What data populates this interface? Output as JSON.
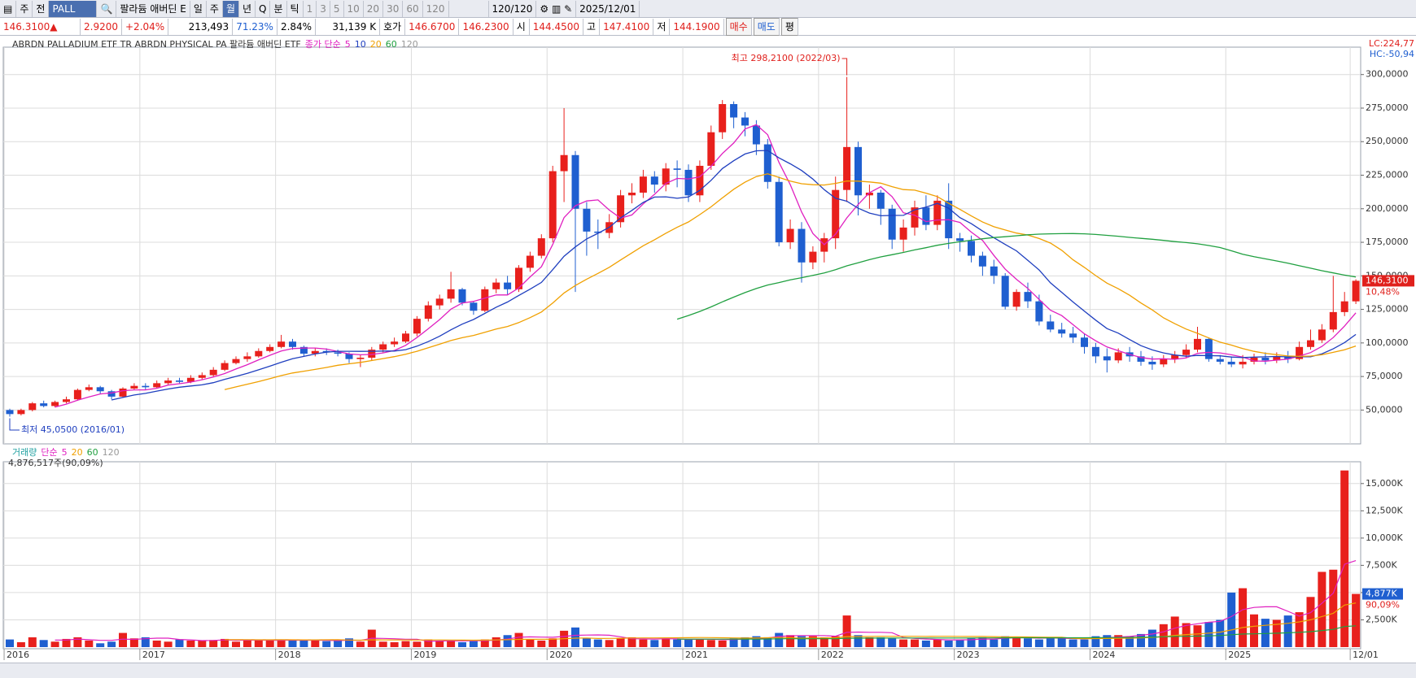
{
  "toolbar": {
    "items": [
      "주",
      "전"
    ],
    "symbol": "PALL",
    "name": "팔라듐 애버딘 E",
    "periods": [
      "일",
      "주",
      "월",
      "년",
      "Q",
      "분",
      "틱"
    ],
    "intervals": [
      "1",
      "3",
      "5",
      "10",
      "20",
      "30",
      "60",
      "120"
    ],
    "count": "120/120",
    "date": "2025/12/01"
  },
  "quote": {
    "price": "146.3100▲",
    "change": "2.9200",
    "change_pct": "+2.04%",
    "volume": "213,493",
    "ratio1": "71.23%",
    "ratio2": "2.84%",
    "amount": "31,139 K",
    "bid_label": "호가",
    "ask": "146.6700",
    "bid": "146.2300",
    "open_label": "시",
    "open": "144.4500",
    "high_label": "고",
    "high": "147.4100",
    "low_label": "저",
    "low": "144.1900",
    "buy": "매수",
    "sell": "매도",
    "avg": "평"
  },
  "chart_data": [
    {
      "type": "candlestick",
      "title": "ABRDN PALLADIUM ETF TR ABRDN PHYSICAL PA  팔라듐 애버딘 ETF",
      "indicator_label": "종가 단순",
      "ma_periods": [
        5,
        10,
        20,
        60,
        120
      ],
      "ma_colors": [
        "#e020c0",
        "#1f3fbf",
        "#f0a000",
        "#20a040",
        "#999999"
      ],
      "up_color": "#e8201c",
      "down_color": "#1f5fd0",
      "categories": [
        "2016",
        null,
        null,
        null,
        null,
        null,
        null,
        null,
        null,
        null,
        null,
        null,
        "2017",
        null,
        null,
        null,
        null,
        null,
        null,
        null,
        null,
        null,
        null,
        null,
        "2018",
        null,
        null,
        null,
        null,
        null,
        null,
        null,
        null,
        null,
        null,
        null,
        "2019",
        null,
        null,
        null,
        null,
        null,
        null,
        null,
        null,
        null,
        null,
        null,
        "2020",
        null,
        null,
        null,
        null,
        null,
        null,
        null,
        null,
        null,
        null,
        null,
        "2021",
        null,
        null,
        null,
        null,
        null,
        null,
        null,
        null,
        null,
        null,
        null,
        "2022",
        null,
        null,
        null,
        null,
        null,
        null,
        null,
        null,
        null,
        null,
        null,
        "2023",
        null,
        null,
        null,
        null,
        null,
        null,
        null,
        null,
        null,
        null,
        null,
        "2024",
        null,
        null,
        null,
        null,
        null,
        null,
        null,
        null,
        null,
        null,
        null,
        "2025",
        null,
        null,
        null,
        null,
        null,
        null,
        null,
        null,
        null,
        null,
        "12/01"
      ],
      "open": [
        50,
        47,
        50,
        55,
        53,
        56,
        58,
        65,
        67,
        64,
        60,
        66,
        68,
        67,
        70,
        72,
        71,
        74,
        76,
        80,
        85,
        88,
        90,
        94,
        97,
        101,
        97,
        92,
        94,
        93,
        92,
        88,
        89,
        95,
        99,
        101,
        107,
        118,
        128,
        133,
        140,
        130,
        124,
        140,
        145,
        140,
        156,
        165,
        178,
        228,
        240,
        200,
        183,
        182,
        190,
        210,
        212,
        224,
        218,
        230,
        229,
        210,
        232,
        257,
        278,
        268,
        262,
        248,
        220,
        175,
        185,
        160,
        168,
        178,
        214,
        246,
        210,
        212,
        200,
        177,
        186,
        201,
        188,
        206,
        178,
        176,
        165,
        157,
        150,
        127,
        138,
        131,
        116,
        110,
        107,
        104,
        97,
        90,
        87,
        93,
        90,
        86,
        84,
        88,
        91,
        95,
        103,
        88,
        86,
        84,
        86,
        89,
        87,
        90,
        88,
        97,
        102,
        110,
        123,
        131
      ],
      "high": [
        51,
        51,
        56,
        57,
        57,
        60,
        66,
        69,
        68,
        65,
        67,
        70,
        70,
        72,
        74,
        74,
        76,
        78,
        82,
        87,
        90,
        93,
        96,
        99,
        106,
        103,
        98,
        96,
        96,
        95,
        93,
        91,
        97,
        101,
        104,
        109,
        120,
        131,
        136,
        153,
        141,
        131,
        142,
        148,
        150,
        158,
        168,
        181,
        232,
        275,
        243,
        205,
        192,
        196,
        214,
        219,
        229,
        228,
        234,
        236,
        233,
        236,
        262,
        281,
        280,
        272,
        266,
        252,
        224,
        192,
        190,
        172,
        182,
        224,
        298.21,
        250,
        218,
        214,
        203,
        192,
        206,
        210,
        210,
        219,
        182,
        180,
        168,
        162,
        152,
        140,
        145,
        136,
        121,
        115,
        112,
        107,
        100,
        96,
        96,
        97,
        94,
        90,
        91,
        94,
        99,
        112,
        104,
        91,
        90,
        91,
        92,
        93,
        93,
        94,
        101,
        110,
        114,
        150,
        138,
        147.41
      ],
      "low": [
        45.05,
        46,
        49,
        52,
        52,
        55,
        57,
        64,
        62,
        58,
        59,
        65,
        65,
        66,
        69,
        70,
        70,
        73,
        75,
        79,
        84,
        86,
        89,
        93,
        96,
        95,
        90,
        90,
        91,
        90,
        85,
        82,
        87,
        93,
        97,
        100,
        105,
        116,
        125,
        130,
        128,
        121,
        123,
        137,
        136,
        138,
        153,
        163,
        175,
        205,
        138,
        165,
        170,
        178,
        186,
        204,
        208,
        212,
        213,
        216,
        205,
        205,
        229,
        252,
        260,
        254,
        240,
        215,
        172,
        170,
        145,
        155,
        160,
        170,
        205,
        195,
        200,
        188,
        170,
        168,
        180,
        184,
        184,
        170,
        168,
        160,
        150,
        144,
        125,
        124,
        126,
        113,
        108,
        104,
        100,
        92,
        85,
        78,
        85,
        86,
        83,
        80,
        82,
        85,
        89,
        93,
        86,
        84,
        82,
        81,
        84,
        84,
        85,
        85,
        87,
        95,
        100,
        108,
        120,
        129
      ],
      "close": [
        47,
        50,
        55,
        53,
        56,
        58,
        65,
        67,
        64,
        60,
        66,
        68,
        67,
        70,
        72,
        71,
        74,
        76,
        80,
        85,
        88,
        90,
        94,
        97,
        101,
        97,
        92,
        94,
        93,
        92,
        88,
        89,
        95,
        99,
        101,
        107,
        118,
        128,
        133,
        140,
        130,
        124,
        140,
        145,
        140,
        156,
        165,
        178,
        228,
        240,
        200,
        183,
        182,
        190,
        210,
        212,
        224,
        218,
        230,
        229,
        210,
        232,
        257,
        278,
        268,
        262,
        248,
        220,
        175,
        185,
        160,
        168,
        178,
        214,
        246,
        210,
        212,
        200,
        177,
        186,
        201,
        188,
        206,
        178,
        176,
        165,
        157,
        150,
        127,
        138,
        131,
        116,
        110,
        107,
        104,
        97,
        90,
        87,
        93,
        90,
        86,
        84,
        88,
        91,
        95,
        103,
        88,
        86,
        84,
        86,
        89,
        87,
        90,
        88,
        97,
        102,
        110,
        123,
        131,
        146.31
      ],
      "ylim": [
        26,
        318
      ],
      "yticks": [
        {
          "value": 50,
          "label": "50,0000"
        },
        {
          "value": 75,
          "label": "75,0000"
        },
        {
          "value": 100,
          "label": "100,0000"
        },
        {
          "value": 125,
          "label": "125,0000"
        },
        {
          "value": 150,
          "label": "150,0000"
        },
        {
          "value": 175,
          "label": "175,0000"
        },
        {
          "value": 200,
          "label": "200,0000"
        },
        {
          "value": 225,
          "label": "225,0000"
        },
        {
          "value": 250,
          "label": "250,0000"
        },
        {
          "value": 275,
          "label": "275,0000"
        },
        {
          "value": 300,
          "label": "300,0000"
        }
      ],
      "grid": true,
      "annotations": {
        "high_label": "최고 298,2100 (2022/03)",
        "low_label": "최저 45,0500 (2016/01)",
        "lc": "LC:224,77",
        "hc": "HC:-50,94",
        "last_label": "146,3100",
        "pct_label": "10,48%"
      }
    },
    {
      "type": "bar",
      "label": "거래량",
      "indicator_label": "단순",
      "ma_periods": [
        5,
        20,
        60,
        120
      ],
      "ma_colors": [
        "#e020c0",
        "#f0a000",
        "#20a040",
        "#999999"
      ],
      "summary": "4,876,517주(90,09%)",
      "values": [
        700,
        450,
        900,
        650,
        500,
        750,
        900,
        600,
        350,
        500,
        1300,
        800,
        900,
        600,
        500,
        700,
        600,
        600,
        650,
        750,
        500,
        700,
        600,
        600,
        700,
        600,
        650,
        600,
        550,
        600,
        800,
        500,
        1600,
        500,
        450,
        550,
        500,
        700,
        600,
        600,
        450,
        550,
        700,
        900,
        1100,
        1300,
        700,
        600,
        800,
        1500,
        1800,
        800,
        700,
        650,
        800,
        900,
        700,
        650,
        800,
        700,
        700,
        750,
        650,
        600,
        800,
        900,
        1000,
        900,
        1300,
        1100,
        1000,
        1000,
        900,
        1000,
        2900,
        1100,
        900,
        900,
        800,
        700,
        700,
        600,
        700,
        600,
        700,
        800,
        900,
        700,
        1000,
        900,
        800,
        700,
        800,
        900,
        700,
        700,
        1000,
        1100,
        1100,
        1000,
        1200,
        1600,
        2100,
        2800,
        2200,
        2000,
        2300,
        2500,
        5000,
        5400,
        3000,
        2600,
        2500,
        2900,
        3200,
        4600,
        6900,
        7100,
        16200,
        4877
      ],
      "ylim": [
        0,
        16700
      ],
      "yticks": [
        {
          "value": 2500,
          "label": "2,500K"
        },
        {
          "value": 5000,
          "label": "5,000K"
        },
        {
          "value": 7500,
          "label": "7,500K"
        },
        {
          "value": 10000,
          "label": "10,000K"
        },
        {
          "value": 12500,
          "label": "12,500K"
        },
        {
          "value": 15000,
          "label": "15,000K"
        }
      ],
      "grid": true,
      "annotations": {
        "last_label": "4,877K",
        "pct_label": "90,09%"
      }
    }
  ]
}
